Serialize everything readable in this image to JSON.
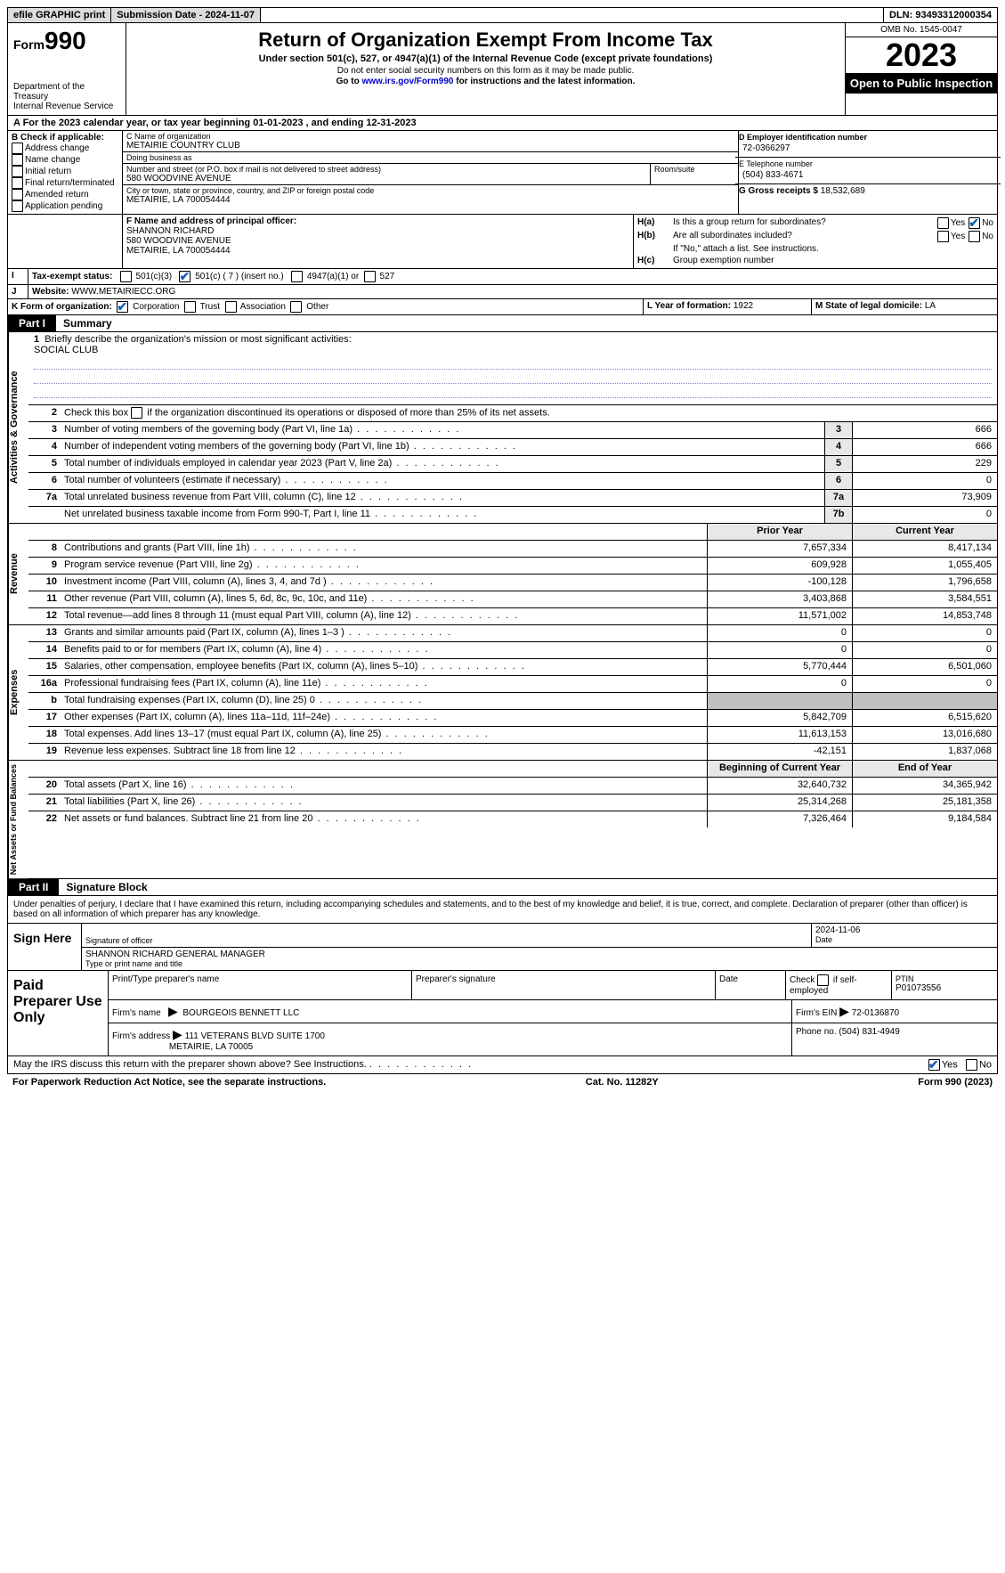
{
  "colors": {
    "background": "#ffffff",
    "text": "#000000",
    "header_bar": "#dcdcdc",
    "black_tab": "#000000",
    "check_color": "#1a5fb4",
    "shaded_cell": "#c0c0c0",
    "label_bg": "#e8e8e8",
    "link": "#0000cc",
    "underline_tint": "#8888cc"
  },
  "topbar": {
    "efile": "efile GRAPHIC print",
    "subdate_label": "Submission Date - 2024-11-07",
    "dln_label": "DLN: 93493312000354"
  },
  "header": {
    "form_prefix": "Form",
    "form_number": "990",
    "dept1": "Department of the Treasury",
    "dept2": "Internal Revenue Service",
    "title": "Return of Organization Exempt From Income Tax",
    "sub": "Under section 501(c), 527, or 4947(a)(1) of the Internal Revenue Code (except private foundations)",
    "note1": "Do not enter social security numbers on this form as it may be made public.",
    "note2_pre": "Go to ",
    "note2_link": "www.irs.gov/Form990",
    "note2_post": " for instructions and the latest information.",
    "omb": "OMB No. 1545-0047",
    "year": "2023",
    "open": "Open to Public Inspection"
  },
  "lineA": "A For the 2023 calendar year, or tax year beginning 01-01-2023   , and ending 12-31-2023",
  "boxB": {
    "title": "B Check if applicable:",
    "items": [
      "Address change",
      "Name change",
      "Initial return",
      "Final return/terminated",
      "Amended return",
      "Application pending"
    ]
  },
  "boxC": {
    "name_label": "C Name of organization",
    "name": "METAIRIE COUNTRY CLUB",
    "dba_label": "Doing business as",
    "dba": "",
    "street_label": "Number and street (or P.O. box if mail is not delivered to street address)",
    "room_label": "Room/suite",
    "street": "580 WOODVINE AVENUE",
    "city_label": "City or town, state or province, country, and ZIP or foreign postal code",
    "city": "METAIRIE, LA   700054444"
  },
  "boxD": {
    "label": "D Employer identification number",
    "value": "72-0366297"
  },
  "boxE": {
    "label": "E Telephone number",
    "value": "(504) 833-4671"
  },
  "boxG": {
    "label": "G Gross receipts $",
    "value": "18,532,689"
  },
  "boxF": {
    "label": "F  Name and address of principal officer:",
    "name": "SHANNON RICHARD",
    "street": "580 WOODVINE AVENUE",
    "city": "METAIRIE, LA   700054444"
  },
  "boxH": {
    "ha": "Is this a group return for subordinates?",
    "ha_key": "H(a)",
    "hb": "Are all subordinates included?",
    "hb_key": "H(b)",
    "hb_note": "If \"No,\" attach a list. See instructions.",
    "hc": "Group exemption number",
    "hc_key": "H(c)",
    "yes": "Yes",
    "no": "No",
    "ha_no_checked": true
  },
  "lineI": {
    "label": "Tax-exempt status:",
    "o1": "501(c)(3)",
    "o2": "501(c) ( 7 ) (insert no.)",
    "o3": "4947(a)(1) or",
    "o4": "527",
    "checked_index": 1
  },
  "lineJ": {
    "label": "J",
    "text": "Website:",
    "value": " WWW.METAIRIECC.ORG"
  },
  "lineK": {
    "label": "K Form of organization:",
    "opts": [
      "Corporation",
      "Trust",
      "Association",
      "Other"
    ],
    "checked_index": 0
  },
  "lineL": {
    "label": "L Year of formation:",
    "value": "1922"
  },
  "lineM": {
    "label": "M State of legal domicile:",
    "value": "LA"
  },
  "partI": {
    "tab": "Part I",
    "title": "Summary"
  },
  "summary": {
    "side1": "Activities & Governance",
    "side2": "Revenue",
    "side3": "Expenses",
    "side4": "Net Assets or Fund Balances",
    "line1_num": "1",
    "line1": "Briefly describe the organization's mission or most significant activities:",
    "line1_val": "SOCIAL CLUB",
    "line2_num": "2",
    "line2": "Check this box",
    "line2_post": "if the organization discontinued its operations or disposed of more than 25% of its net assets.",
    "rows_a": [
      {
        "n": "3",
        "d": "Number of voting members of the governing body (Part VI, line 1a)",
        "box": "3",
        "v": "666"
      },
      {
        "n": "4",
        "d": "Number of independent voting members of the governing body (Part VI, line 1b)",
        "box": "4",
        "v": "666"
      },
      {
        "n": "5",
        "d": "Total number of individuals employed in calendar year 2023 (Part V, line 2a)",
        "box": "5",
        "v": "229"
      },
      {
        "n": "6",
        "d": "Total number of volunteers (estimate if necessary)",
        "box": "6",
        "v": "0"
      },
      {
        "n": "7a",
        "d": "Total unrelated business revenue from Part VIII, column (C), line 12",
        "box": "7a",
        "v": "73,909"
      },
      {
        "n": "",
        "d": "Net unrelated business taxable income from Form 990-T, Part I, line 11",
        "box": "7b",
        "v": "0"
      }
    ],
    "col_prior": "Prior Year",
    "col_current": "Current Year",
    "rows_rev": [
      {
        "n": "8",
        "d": "Contributions and grants (Part VIII, line 1h)",
        "p": "7,657,334",
        "c": "8,417,134"
      },
      {
        "n": "9",
        "d": "Program service revenue (Part VIII, line 2g)",
        "p": "609,928",
        "c": "1,055,405"
      },
      {
        "n": "10",
        "d": "Investment income (Part VIII, column (A), lines 3, 4, and 7d )",
        "p": "-100,128",
        "c": "1,796,658"
      },
      {
        "n": "11",
        "d": "Other revenue (Part VIII, column (A), lines 5, 6d, 8c, 9c, 10c, and 11e)",
        "p": "3,403,868",
        "c": "3,584,551"
      },
      {
        "n": "12",
        "d": "Total revenue—add lines 8 through 11 (must equal Part VIII, column (A), line 12)",
        "p": "11,571,002",
        "c": "14,853,748"
      }
    ],
    "rows_exp": [
      {
        "n": "13",
        "d": "Grants and similar amounts paid (Part IX, column (A), lines 1–3 )",
        "p": "0",
        "c": "0"
      },
      {
        "n": "14",
        "d": "Benefits paid to or for members (Part IX, column (A), line 4)",
        "p": "0",
        "c": "0"
      },
      {
        "n": "15",
        "d": "Salaries, other compensation, employee benefits (Part IX, column (A), lines 5–10)",
        "p": "5,770,444",
        "c": "6,501,060"
      },
      {
        "n": "16a",
        "d": "Professional fundraising fees (Part IX, column (A), line 11e)",
        "p": "0",
        "c": "0"
      },
      {
        "n": "b",
        "d": "Total fundraising expenses (Part IX, column (D), line 25) 0",
        "p": "SHADED",
        "c": "SHADED"
      },
      {
        "n": "17",
        "d": "Other expenses (Part IX, column (A), lines 11a–11d, 11f–24e)",
        "p": "5,842,709",
        "c": "6,515,620"
      },
      {
        "n": "18",
        "d": "Total expenses. Add lines 13–17 (must equal Part IX, column (A), line 25)",
        "p": "11,613,153",
        "c": "13,016,680"
      },
      {
        "n": "19",
        "d": "Revenue less expenses. Subtract line 18 from line 12",
        "p": "-42,151",
        "c": "1,837,068"
      }
    ],
    "col_begin": "Beginning of Current Year",
    "col_end": "End of Year",
    "rows_net": [
      {
        "n": "20",
        "d": "Total assets (Part X, line 16)",
        "p": "32,640,732",
        "c": "34,365,942"
      },
      {
        "n": "21",
        "d": "Total liabilities (Part X, line 26)",
        "p": "25,314,268",
        "c": "25,181,358"
      },
      {
        "n": "22",
        "d": "Net assets or fund balances. Subtract line 21 from line 20",
        "p": "7,326,464",
        "c": "9,184,584"
      }
    ]
  },
  "partII": {
    "tab": "Part II",
    "title": "Signature Block"
  },
  "sig": {
    "perjury": "Under penalties of perjury, I declare that I have examined this return, including accompanying schedules and statements, and to the best of my knowledge and belief, it is true, correct, and complete. Declaration of preparer (other than officer) is based on all information of which preparer has any knowledge.",
    "sign_here": "Sign Here",
    "sig_officer": "Signature of officer",
    "date": "Date",
    "date_val": "2024-11-06",
    "name_title": "SHANNON RICHARD  GENERAL MANAGER",
    "type_name": "Type or print name and title"
  },
  "paid": {
    "label": "Paid Preparer Use Only",
    "p1": "Print/Type preparer's name",
    "p2": "Preparer's signature",
    "p3": "Date",
    "p4_a": "Check",
    "p4_b": "if self-employed",
    "p5": "PTIN",
    "p5v": "P01073556",
    "firm": "Firm's name",
    "firmv": "BOURGEOIS BENNETT LLC",
    "ein": "Firm's EIN",
    "einv": "72-0136870",
    "addr": "Firm's address",
    "addrv1": "111 VETERANS BLVD SUITE 1700",
    "addrv2": "METAIRIE, LA   70005",
    "phone": "Phone no.",
    "phonev": "(504) 831-4949"
  },
  "footer": {
    "discuss": "May the IRS discuss this return with the preparer shown above? See Instructions.",
    "yes": "Yes",
    "no": "No",
    "yes_checked": true,
    "pra": "For Paperwork Reduction Act Notice, see the separate instructions.",
    "cat": "Cat. No. 11282Y",
    "form": "Form 990 (2023)"
  }
}
